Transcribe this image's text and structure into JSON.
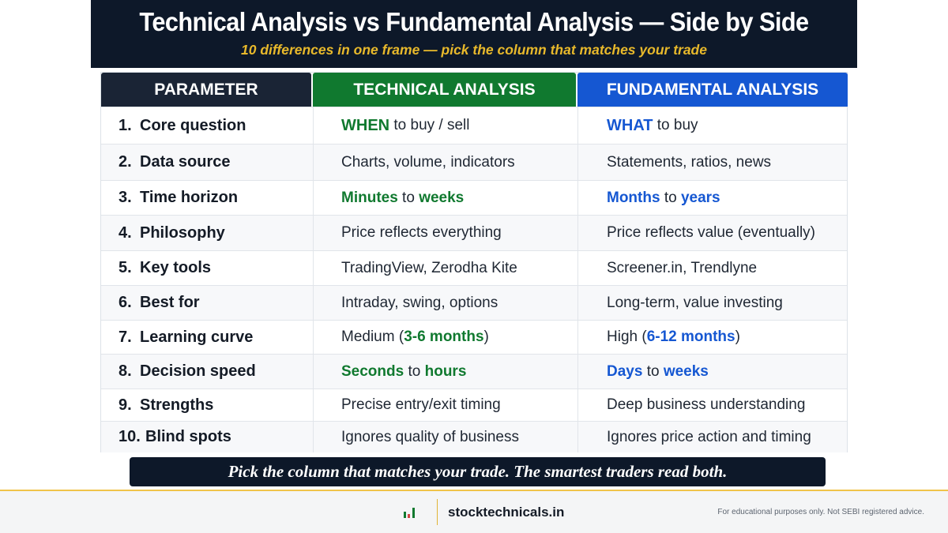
{
  "header": {
    "title": "Technical Analysis vs Fundamental Analysis — Side by Side",
    "subtitle": "10 differences in one frame — pick the column that matches your trade"
  },
  "table": {
    "columns": [
      "PARAMETER",
      "TECHNICAL ANALYSIS",
      "FUNDAMENTAL ANALYSIS"
    ],
    "rows": [
      {
        "num": "1.",
        "parameter": "Core question",
        "technical": {
          "before": "",
          "em1": "WHEN",
          "middle": " to buy / sell",
          "em2": "",
          "after": ""
        },
        "fundamental": {
          "before": "",
          "em1": "WHAT",
          "middle": " to buy",
          "em2": "",
          "after": ""
        }
      },
      {
        "num": "2.",
        "parameter": "Data source",
        "technical": {
          "before": "Charts, volume, indicators",
          "em1": "",
          "middle": "",
          "em2": "",
          "after": ""
        },
        "fundamental": {
          "before": "Statements, ratios, news",
          "em1": "",
          "middle": "",
          "em2": "",
          "after": ""
        }
      },
      {
        "num": "3.",
        "parameter": "Time horizon",
        "technical": {
          "before": "",
          "em1": "Minutes",
          "middle": " to ",
          "em2": "weeks",
          "after": ""
        },
        "fundamental": {
          "before": "",
          "em1": "Months",
          "middle": " to ",
          "em2": "years",
          "after": ""
        }
      },
      {
        "num": "4.",
        "parameter": "Philosophy",
        "technical": {
          "before": "Price reflects everything",
          "em1": "",
          "middle": "",
          "em2": "",
          "after": ""
        },
        "fundamental": {
          "before": "Price reflects value (eventually)",
          "em1": "",
          "middle": "",
          "em2": "",
          "after": ""
        }
      },
      {
        "num": "5.",
        "parameter": "Key tools",
        "technical": {
          "before": "TradingView, Zerodha Kite",
          "em1": "",
          "middle": "",
          "em2": "",
          "after": ""
        },
        "fundamental": {
          "before": "Screener.in, Trendlyne",
          "em1": "",
          "middle": "",
          "em2": "",
          "after": ""
        }
      },
      {
        "num": "6.",
        "parameter": "Best for",
        "technical": {
          "before": "Intraday, swing, options",
          "em1": "",
          "middle": "",
          "em2": "",
          "after": ""
        },
        "fundamental": {
          "before": "Long-term, value investing",
          "em1": "",
          "middle": "",
          "em2": "",
          "after": ""
        }
      },
      {
        "num": "7.",
        "parameter": "Learning curve",
        "technical": {
          "before": "Medium (",
          "em1": "3-6 months",
          "middle": "",
          "em2": "",
          "after": ")"
        },
        "fundamental": {
          "before": "High (",
          "em1": "6-12 months",
          "middle": "",
          "em2": "",
          "after": ")"
        }
      },
      {
        "num": "8.",
        "parameter": "Decision speed",
        "technical": {
          "before": "",
          "em1": "Seconds",
          "middle": " to ",
          "em2": "hours",
          "after": ""
        },
        "fundamental": {
          "before": "",
          "em1": "Days",
          "middle": " to ",
          "em2": "weeks",
          "after": ""
        }
      },
      {
        "num": "9.",
        "parameter": "Strengths",
        "technical": {
          "before": "Precise entry/exit timing",
          "em1": "",
          "middle": "",
          "em2": "",
          "after": ""
        },
        "fundamental": {
          "before": "Deep business understanding",
          "em1": "",
          "middle": "",
          "em2": "",
          "after": ""
        }
      },
      {
        "num": "10.",
        "parameter": "Blind spots",
        "technical": {
          "before": "Ignores quality of business",
          "em1": "",
          "middle": "",
          "em2": "",
          "after": ""
        },
        "fundamental": {
          "before": "Ignores price action and timing",
          "em1": "",
          "middle": "",
          "em2": "",
          "after": ""
        }
      }
    ]
  },
  "banner": "Pick the column that matches your trade. The smartest traders read both.",
  "footer": {
    "logo_icon": "bar-chart-icon",
    "site": "stocktechnicals.in",
    "disclaimer": "For educational purposes only. Not SEBI registered advice."
  },
  "colors": {
    "navy": "#0d1829",
    "technical_green": "#10792f",
    "fundamental_blue": "#1557d2",
    "accent_gold": "#e8b92b"
  }
}
